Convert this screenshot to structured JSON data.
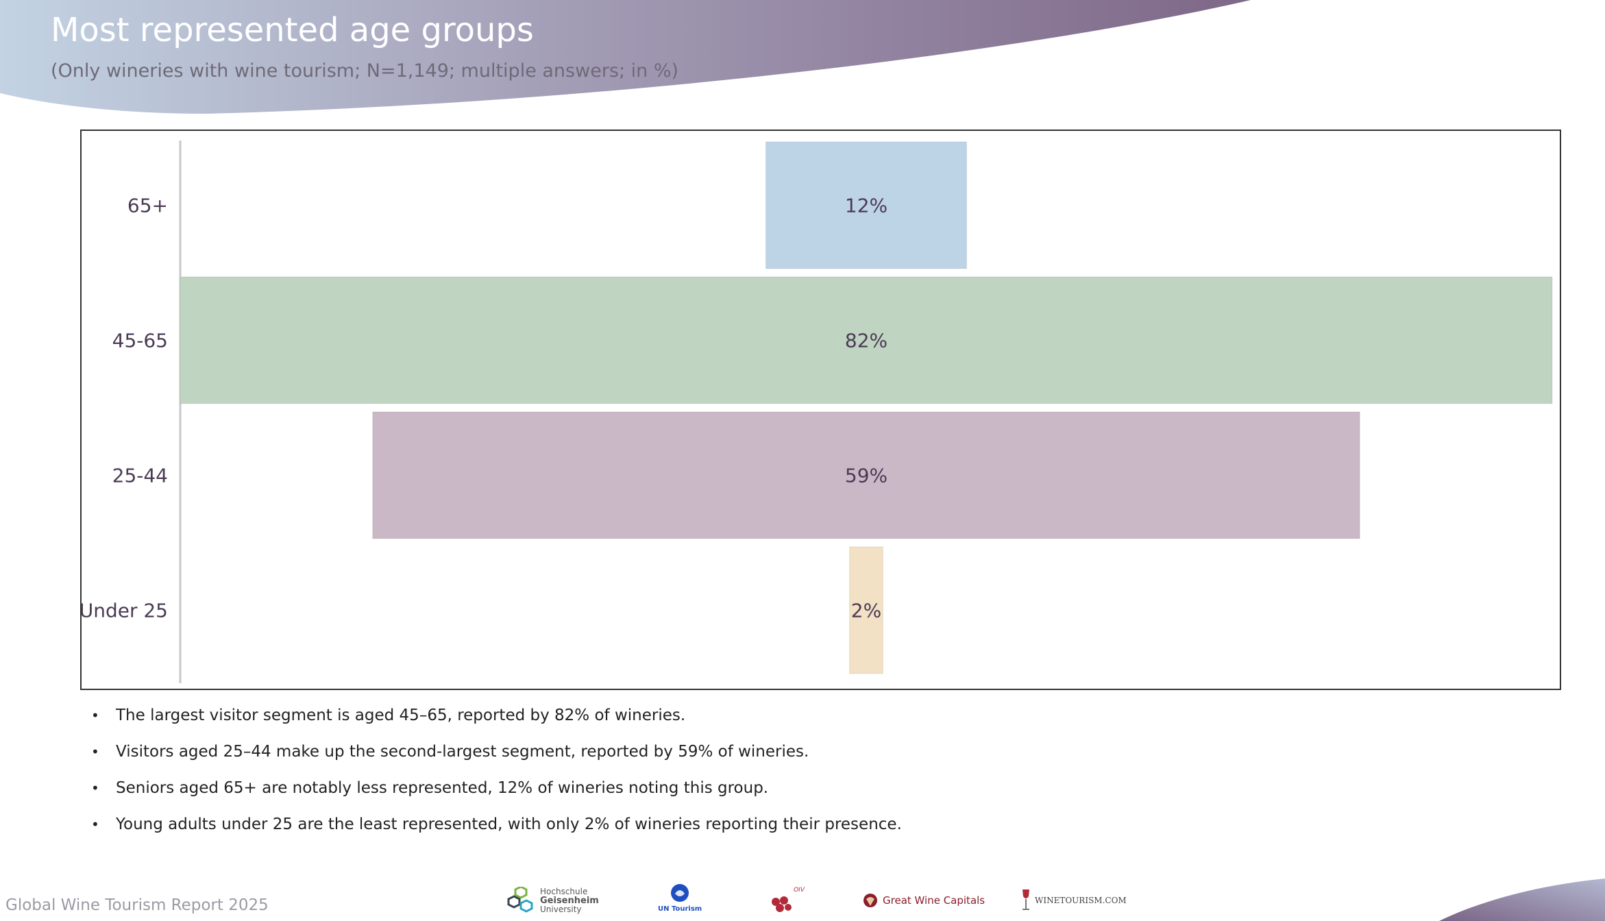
{
  "header": {
    "title": "Most represented age groups",
    "subtitle": "(Only wineries with wine tourism; N=1,149; multiple answers; in %)"
  },
  "chart_data": {
    "type": "bar",
    "orientation": "horizontal-centered",
    "categories": [
      "65+",
      "45-65",
      "25-44",
      "Under 25"
    ],
    "values": [
      12,
      82,
      59,
      2
    ],
    "value_labels": [
      "12%",
      "82%",
      "59%",
      "2%"
    ],
    "colors": [
      "#bdd3e6",
      "#bfd4c1",
      "#cbb8c6",
      "#f2e1c4"
    ],
    "xlim": [
      0,
      82
    ],
    "grid": false,
    "legend": "none"
  },
  "bullets": [
    "The largest visitor segment is aged 45–65, reported by 82% of wineries.",
    "Visitors aged 25–44 make up the second-largest segment, reported by 59% of wineries.",
    "Seniors aged 65+ are notably less represented, 12% of wineries noting this group.",
    "Young adults under 25 are the least represented, with only 2% of wineries reporting their presence."
  ],
  "footer": {
    "text": "Global Wine Tourism Report 2025"
  },
  "logos": [
    {
      "icon": "hochschule-logo-icon",
      "lines": [
        "Hochschule",
        "Geisenheim",
        "University"
      ]
    },
    {
      "icon": "un-tourism-logo-icon",
      "lines": [
        "UN Tourism"
      ]
    },
    {
      "icon": "oiv-logo-icon",
      "lines": [
        "OIV"
      ]
    },
    {
      "icon": "great-wine-capitals-logo-icon",
      "lines": [
        "Great Wine Capitals"
      ]
    },
    {
      "icon": "winetourism-logo-icon",
      "lines": [
        "WINETOURISM.COM"
      ]
    }
  ]
}
